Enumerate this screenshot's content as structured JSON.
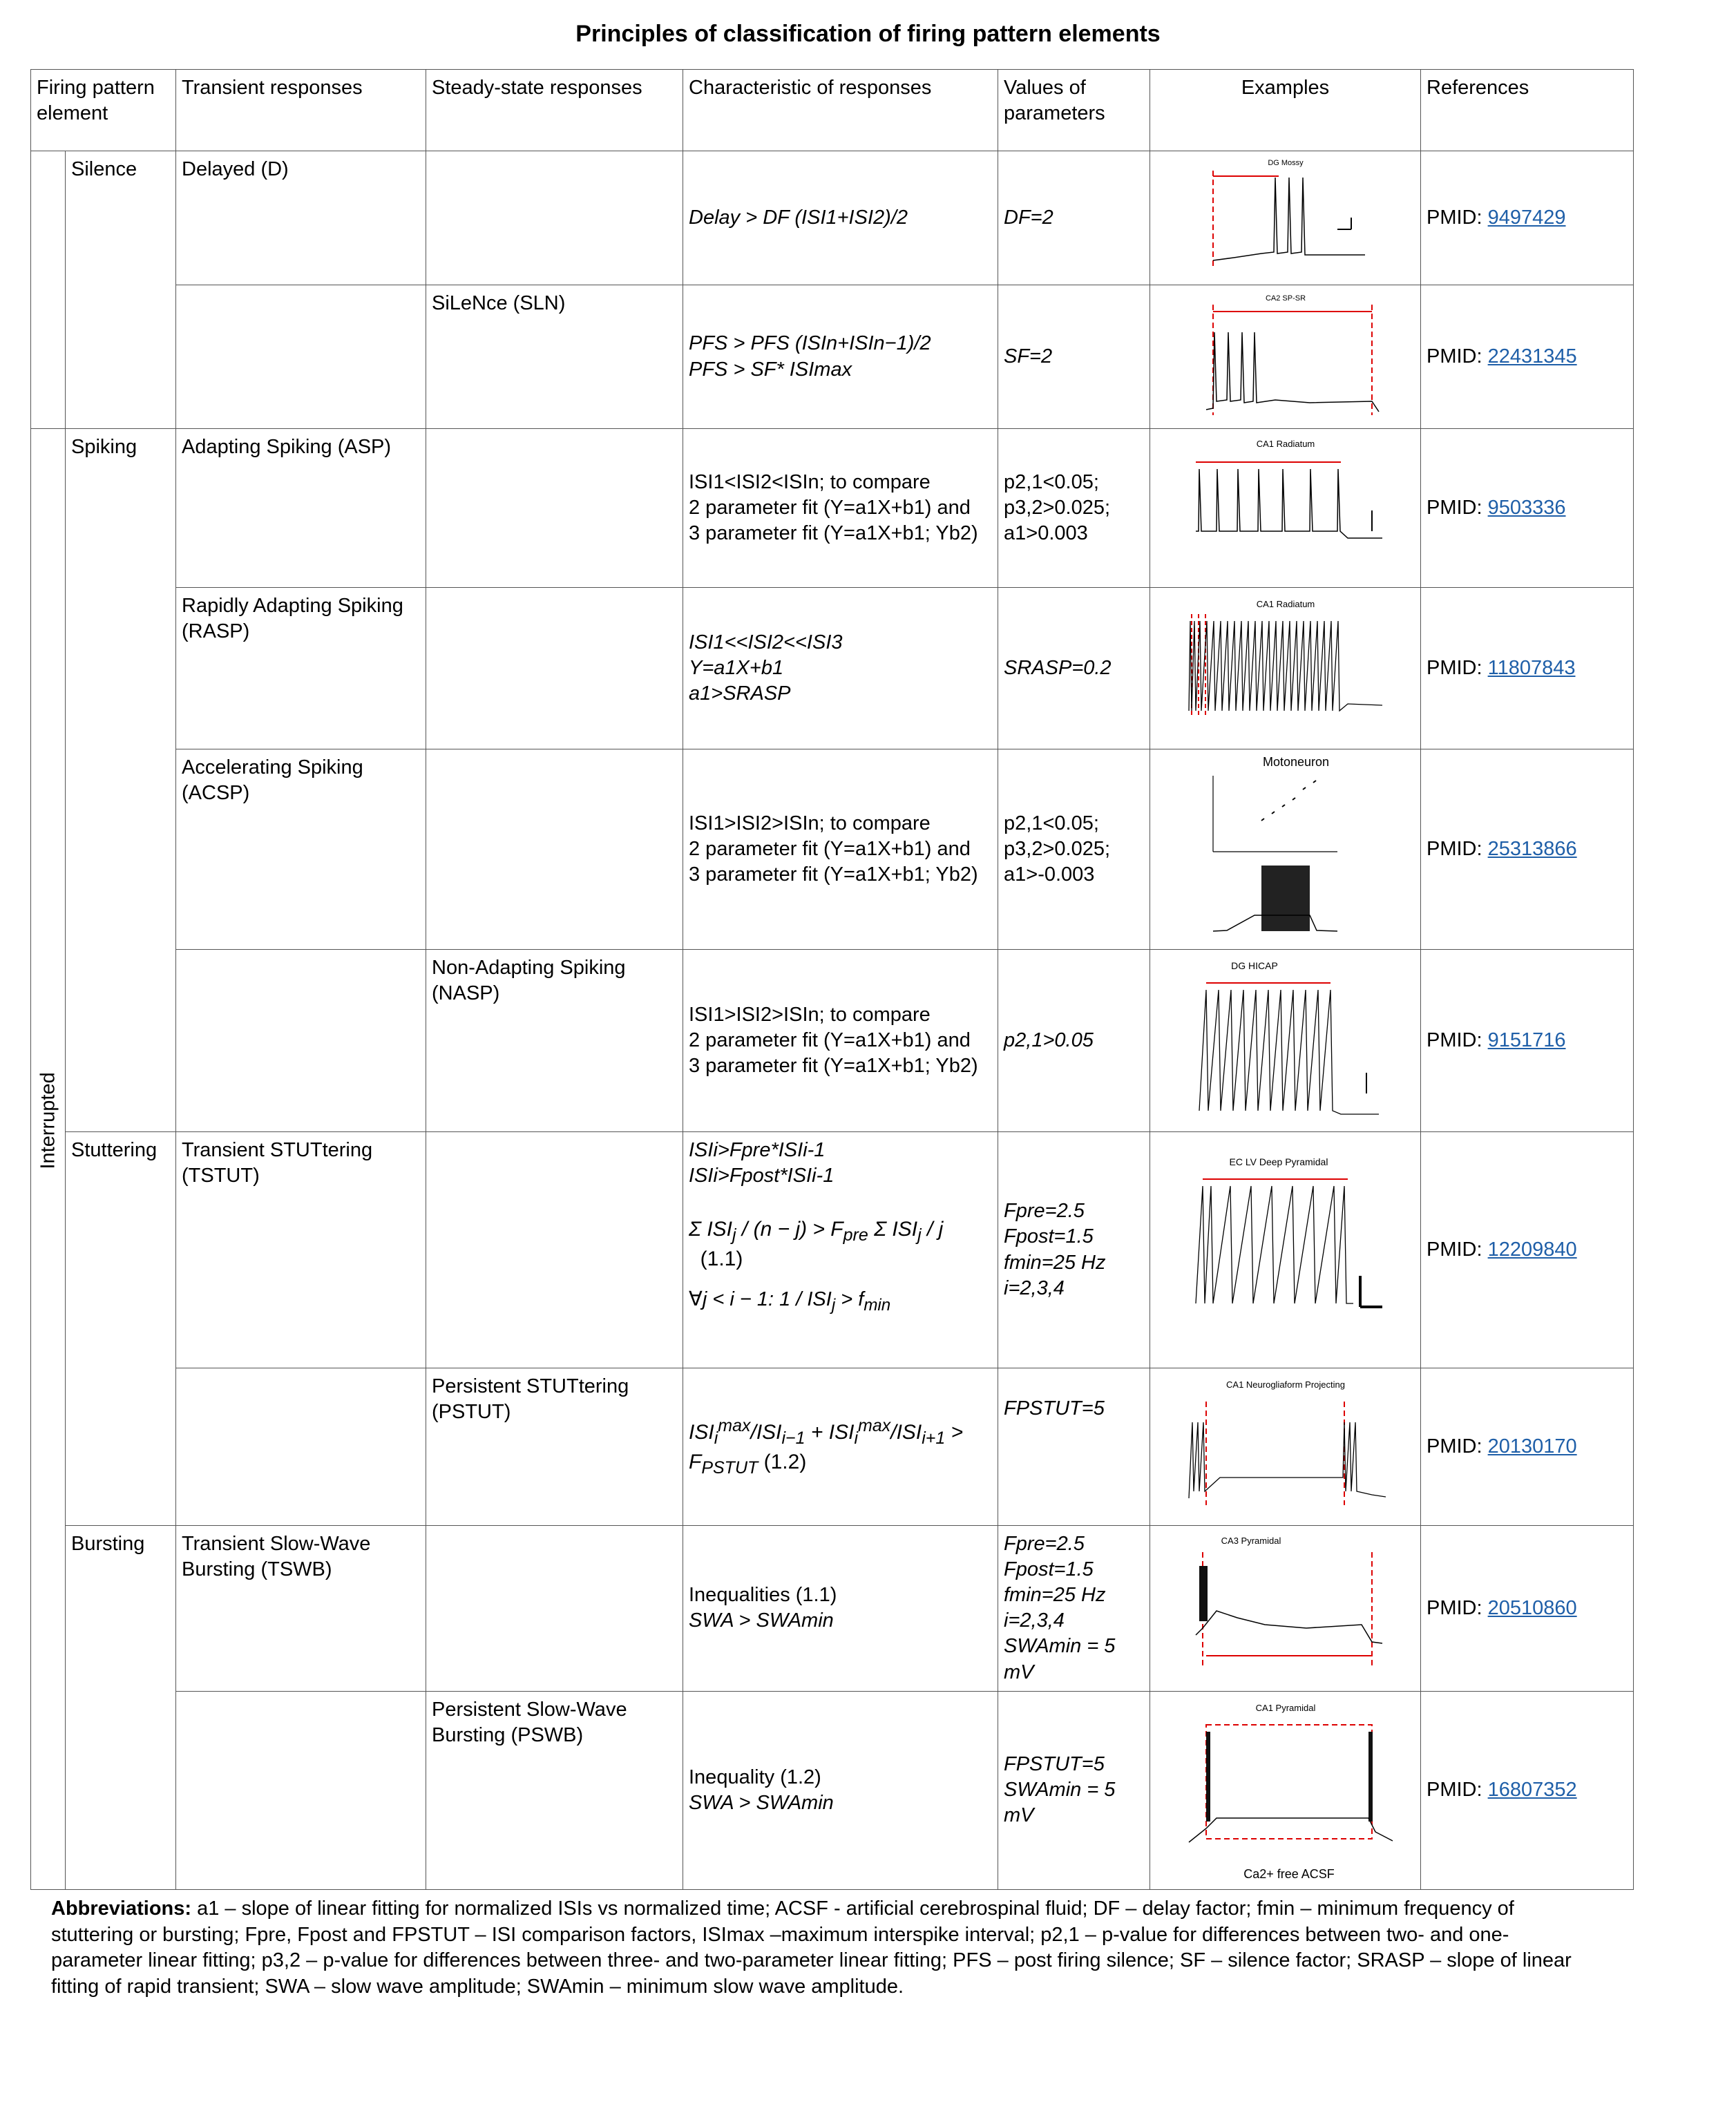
{
  "title": "Principles of classification of firing pattern elements",
  "headers": {
    "element": "Firing pattern element",
    "transient": "Transient responses",
    "steady": "Steady-state responses",
    "characteristic": "Characteristic of responses",
    "values": "Values of parameters",
    "examples": "Examples",
    "references": "References"
  },
  "groups": {
    "interrupted": "Interrupted",
    "silence": "Silence",
    "spiking": "Spiking",
    "stuttering": "Stuttering",
    "bursting": "Bursting"
  },
  "rows": {
    "delayed": {
      "transient": "Delayed (D)",
      "steady": "",
      "char": "Delay > DF (ISI1+ISI2)/2",
      "values": "DF=2",
      "example": "DG Mossy",
      "pmid_label": "PMID:",
      "pmid": "9497429"
    },
    "sln": {
      "transient": "",
      "steady": "SiLeNce (SLN)",
      "char1": "PFS > PFS (ISIn+ISIn−1)/2",
      "char2": "PFS > SF* ISImax",
      "values": "SF=2",
      "example": "CA2 SP-SR",
      "pmid_label": "PMID:",
      "pmid": "22431345"
    },
    "asp": {
      "transient": "Adapting Spiking (ASP)",
      "char1": "ISI1<ISI2<ISIn; to compare",
      "char2": "2 parameter fit (Y=a1X+b1) and",
      "char3": "3 parameter fit (Y=a1X+b1; Yb2)",
      "val1": "p2,1<0.05;",
      "val2": "p3,2>0.025;",
      "val3": "a1>0.003",
      "example": "CA1 Radiatum",
      "pmid_label": "PMID:",
      "pmid": "9503336"
    },
    "rasp": {
      "transient": "Rapidly Adapting Spiking (RASP)",
      "char1": "ISI1<<ISI2<<ISI3",
      "char2": "Y=a1X+b1",
      "char3": "a1>SRASP",
      "values": "SRASP=0.2",
      "example": "CA1 Radiatum",
      "pmid_label": "PMID:",
      "pmid": "11807843"
    },
    "acsp": {
      "transient": "Accelerating Spiking (ACSP)",
      "char1": "ISI1>ISI2>ISIn; to compare",
      "char2": "2 parameter fit (Y=a1X+b1) and",
      "char3": "3 parameter fit (Y=a1X+b1; Yb2)",
      "val1": "p2,1<0.05;",
      "val2": "p3,2>0.025;",
      "val3": "a1>-0.003",
      "example": "Motoneuron",
      "pmid_label": "PMID:",
      "pmid": "25313866"
    },
    "nasp": {
      "steady": "Non-Adapting Spiking (NASP)",
      "char1": "ISI1>ISI2>ISIn; to compare",
      "char2": "2 parameter fit (Y=a1X+b1) and",
      "char3": "3 parameter fit (Y=a1X+b1; Yb2)",
      "values": "p2,1>0.05",
      "example": "DG HICAP",
      "pmid_label": "PMID:",
      "pmid": "9151716"
    },
    "tstut": {
      "transient": "Transient STUTtering (TSTUT)",
      "char1": "ISIi>Fpre*ISIi-1",
      "char2": "ISIi>Fpost*ISIi-1",
      "eq": "(1.1)",
      "val1": "Fpre=2.5",
      "val2": "Fpost=1.5",
      "val3": "fmin=25 Hz",
      "val4": "i=2,3,4",
      "example": "EC LV Deep Pyramidal",
      "pmid_label": "PMID:",
      "pmid": "12209840"
    },
    "pstut": {
      "steady": "Persistent STUTtering (PSTUT)",
      "eq": "(1.2)",
      "values": "FPSTUT=5",
      "example": "CA1 Neurogliaform Projecting",
      "pmid_label": "PMID:",
      "pmid": "20130170"
    },
    "tswb": {
      "transient": "Transient Slow-Wave Bursting (TSWB)",
      "char1": "Inequalities (1.1)",
      "char2": "SWA > SWAmin",
      "val1": "Fpre=2.5",
      "val2": "Fpost=1.5",
      "val3": "fmin=25 Hz",
      "val4": "i=2,3,4",
      "val5": "SWAmin = 5 mV",
      "example": "CA3 Pyramidal",
      "pmid_label": "PMID:",
      "pmid": "20510860"
    },
    "pswb": {
      "steady": "Persistent Slow-Wave Bursting (PSWB)",
      "char1": "Inequality (1.2)",
      "char2": "SWA > SWAmin",
      "val1": "FPSTUT=5",
      "val2": "SWAmin = 5 mV",
      "example": "CA1 Pyramidal",
      "caption": "Ca2+ free ACSF",
      "pmid_label": "PMID:",
      "pmid": "16807352"
    }
  },
  "abbreviations": {
    "label": "Abbreviations:",
    "text": "a1 – slope of linear fitting for normalized ISIs vs normalized time; ACSF - artificial cerebrospinal fluid; DF – delay factor; fmin – minimum frequency of stuttering or bursting; Fpre, Fpost and FPSTUT – ISI comparison factors, ISImax –maximum interspike interval; p2,1 – p-value for differences between two- and one-parameter linear fitting; p3,2 – p-value for differences between three- and two-parameter linear fitting; PFS – post firing silence; SF – silence factor; SRASP – slope of linear fitting of rapid transient; SWA – slow wave amplitude; SWAmin – minimum slow wave amplitude."
  }
}
